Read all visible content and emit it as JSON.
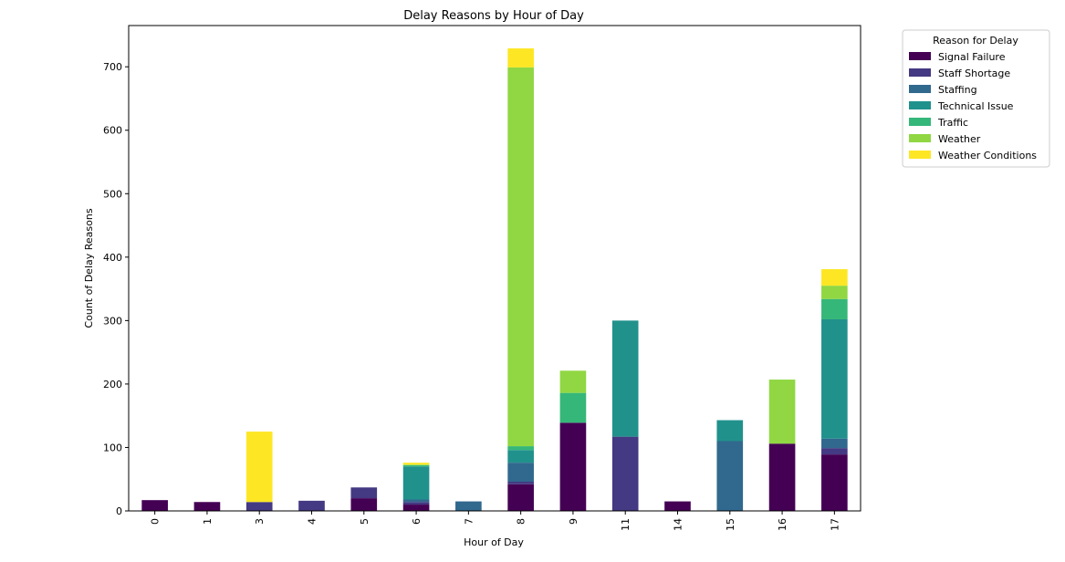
{
  "chart_data": {
    "type": "bar",
    "stacked": true,
    "title": "Delay Reasons by Hour of Day",
    "xlabel": "Hour of Day",
    "ylabel": "Count of Delay Reasons",
    "categories": [
      "0",
      "1",
      "3",
      "4",
      "5",
      "6",
      "7",
      "8",
      "9",
      "11",
      "14",
      "15",
      "16",
      "17"
    ],
    "ylim": [
      0,
      765
    ],
    "yticks": [
      0,
      100,
      200,
      300,
      400,
      500,
      600,
      700
    ],
    "grid": false,
    "legend": {
      "title": "Reason for Delay",
      "placement": "outside-top-right"
    },
    "series": [
      {
        "name": "Signal Failure",
        "color": "#440154",
        "values": [
          17,
          14,
          0,
          0,
          20,
          10,
          0,
          42,
          139,
          0,
          15,
          0,
          106,
          89
        ]
      },
      {
        "name": "Staff Shortage",
        "color": "#443983",
        "values": [
          0,
          0,
          14,
          16,
          17,
          4,
          0,
          4,
          0,
          117,
          0,
          0,
          0,
          10
        ]
      },
      {
        "name": "Staffing",
        "color": "#31688e",
        "values": [
          0,
          0,
          0,
          0,
          0,
          4,
          15,
          30,
          0,
          0,
          0,
          110,
          0,
          15
        ]
      },
      {
        "name": "Technical Issue",
        "color": "#21918c",
        "values": [
          0,
          0,
          0,
          0,
          0,
          52,
          0,
          20,
          0,
          183,
          0,
          33,
          0,
          188
        ]
      },
      {
        "name": "Traffic",
        "color": "#35b779",
        "values": [
          0,
          0,
          0,
          0,
          0,
          2,
          0,
          6,
          47,
          0,
          0,
          0,
          0,
          32
        ]
      },
      {
        "name": "Weather",
        "color": "#90d743",
        "values": [
          0,
          0,
          0,
          0,
          0,
          1,
          0,
          597,
          35,
          0,
          0,
          0,
          101,
          21
        ]
      },
      {
        "name": "Weather Conditions",
        "color": "#fde725",
        "values": [
          0,
          0,
          111,
          0,
          0,
          3,
          0,
          30,
          0,
          0,
          0,
          0,
          0,
          26
        ]
      }
    ]
  }
}
